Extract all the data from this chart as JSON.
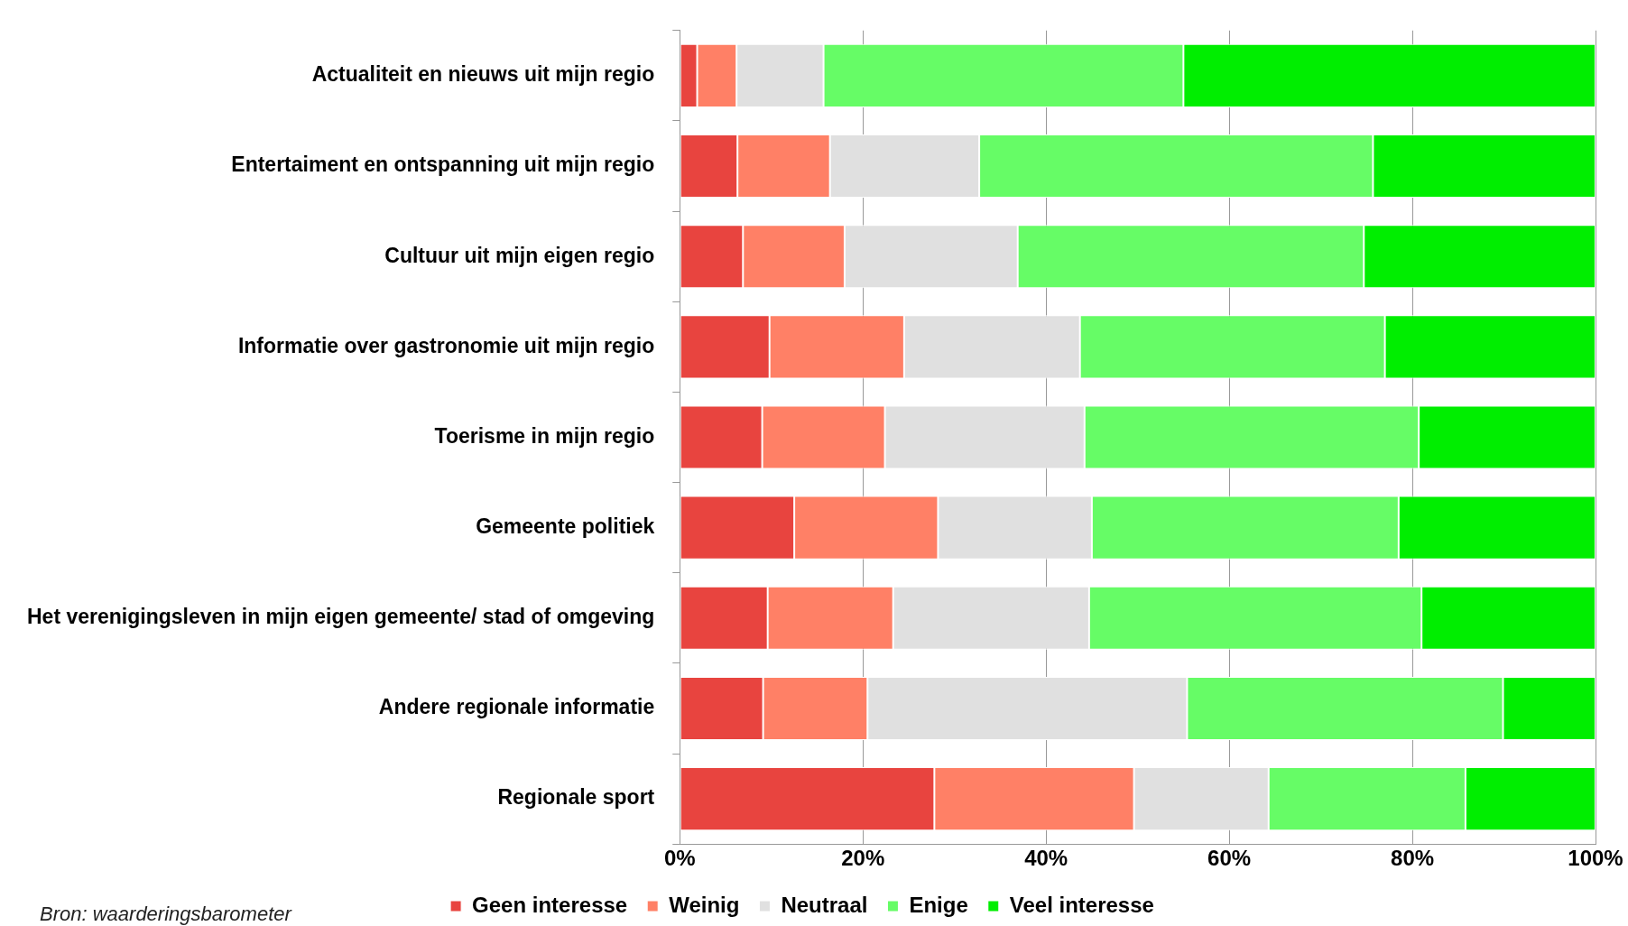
{
  "chart_data": {
    "type": "bar",
    "orientation": "horizontal",
    "stacked": true,
    "categories": [
      "Actualiteit en nieuws uit mijn regio",
      "Entertaiment en ontspanning uit mijn regio",
      "Cultuur uit mijn eigen regio",
      "Informatie over gastronomie uit mijn regio",
      "Toerisme in mijn regio",
      "Gemeente politiek",
      "Het verenigingsleven in mijn eigen gemeente/ stad of omgeving",
      "Andere regionale informatie",
      "Regionale sport"
    ],
    "series": [
      {
        "name": "Geen interesse",
        "color": "#e8443f",
        "values": [
          1.9,
          6.3,
          6.9,
          9.8,
          9.0,
          12.5,
          9.6,
          9.1,
          27.8
        ]
      },
      {
        "name": "Weinig",
        "color": "#ff8066",
        "values": [
          4.3,
          10.1,
          11.1,
          14.7,
          13.4,
          15.7,
          13.7,
          11.4,
          21.8
        ]
      },
      {
        "name": "Neutraal",
        "color": "#e0e0e0",
        "values": [
          9.5,
          16.3,
          18.9,
          19.2,
          21.8,
          16.8,
          21.4,
          34.9,
          14.7
        ]
      },
      {
        "name": "Enige",
        "color": "#66fc66",
        "values": [
          39.3,
          43.0,
          37.8,
          33.3,
          36.5,
          33.5,
          36.3,
          34.5,
          21.5
        ]
      },
      {
        "name": "Veel interesse",
        "color": "#00ee00",
        "values": [
          45.0,
          24.3,
          25.3,
          23.0,
          19.3,
          21.5,
          19.0,
          10.1,
          14.2
        ]
      }
    ],
    "xlim": [
      0,
      100
    ],
    "xticks": [
      {
        "value": 0,
        "label": "0%"
      },
      {
        "value": 20,
        "label": "20%"
      },
      {
        "value": 40,
        "label": "40%"
      },
      {
        "value": 60,
        "label": "60%"
      },
      {
        "value": 80,
        "label": "80%"
      },
      {
        "value": 100,
        "label": "100%"
      }
    ],
    "grid": "x",
    "legend": "bottom",
    "annotations": [
      "Bron: waarderingsbarometer"
    ]
  }
}
